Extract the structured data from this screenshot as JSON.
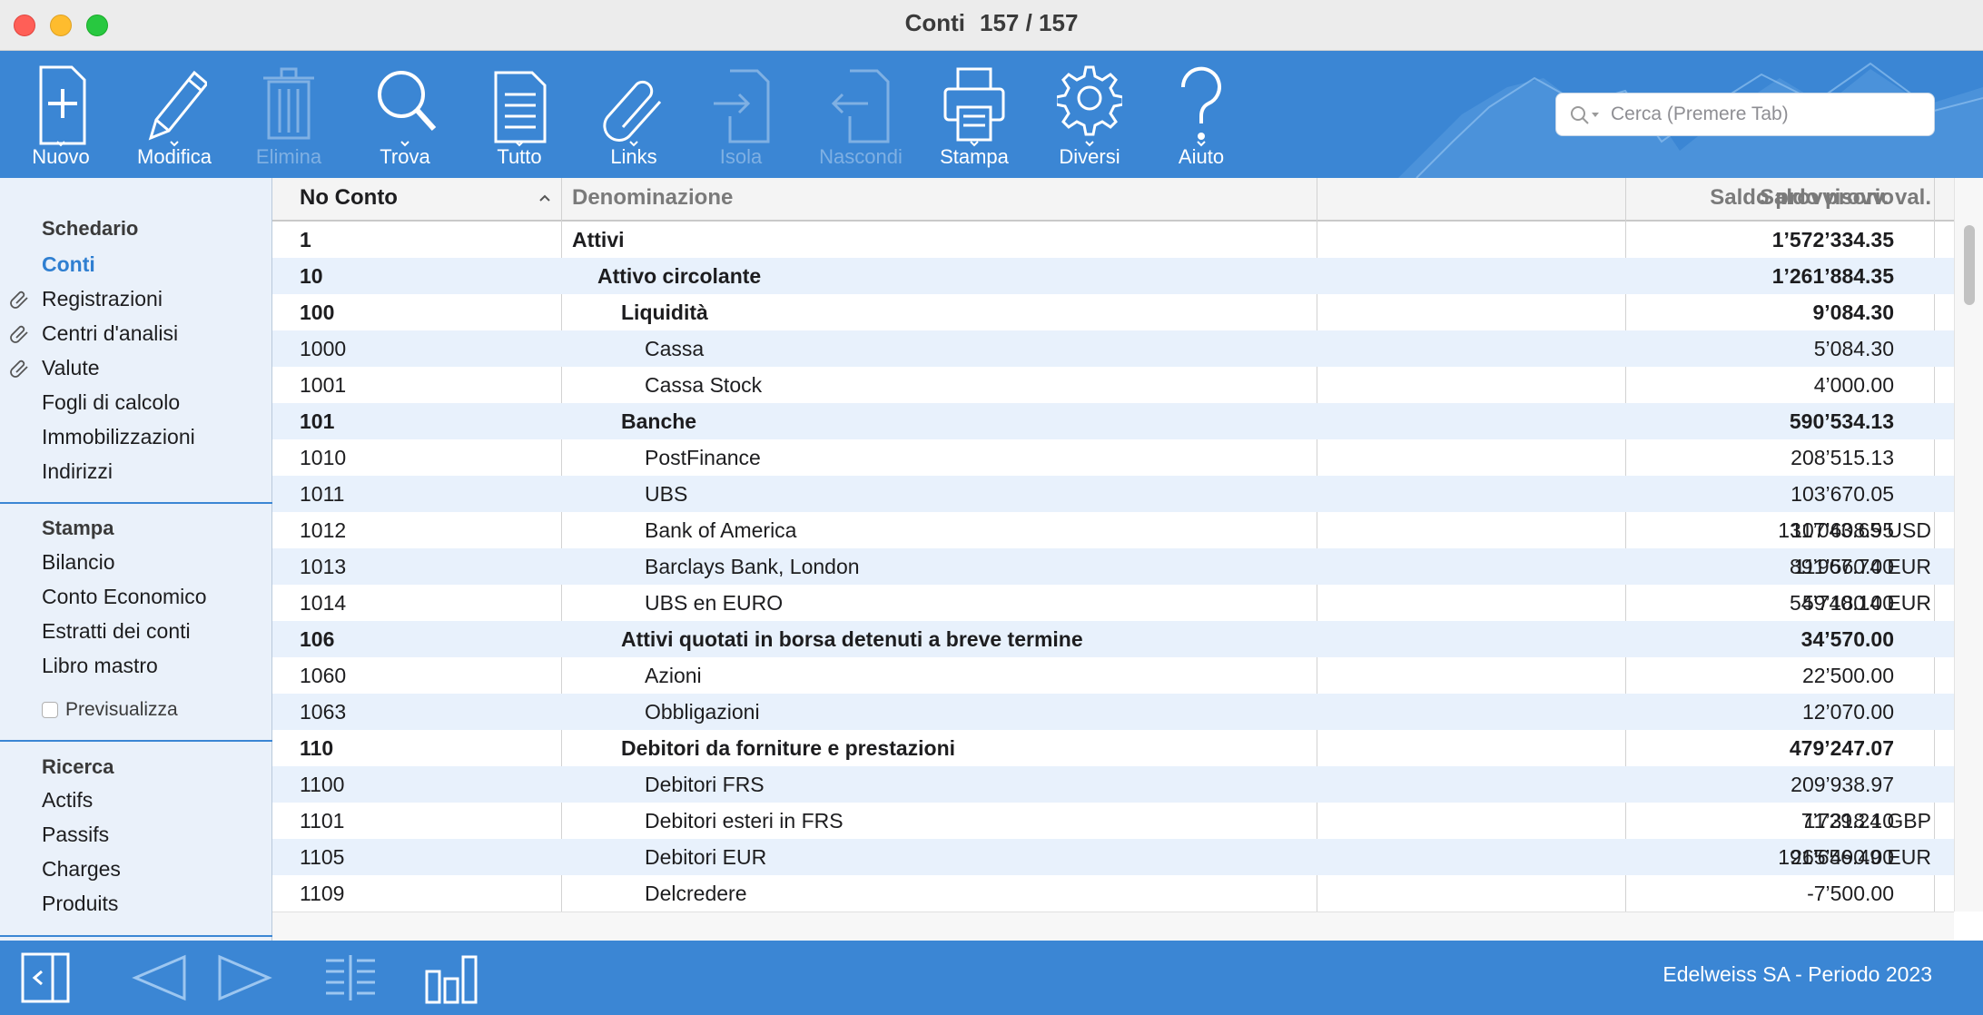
{
  "window": {
    "title": "Conti",
    "record_count": "157 / 157"
  },
  "toolbar": {
    "items": [
      {
        "label": "Nuovo",
        "icon": "new-document-icon",
        "enabled": true
      },
      {
        "label": "Modifica",
        "icon": "pencil-icon",
        "enabled": true
      },
      {
        "label": "Elimina",
        "icon": "trash-icon",
        "enabled": false
      },
      {
        "label": "Trova",
        "icon": "magnifier-icon",
        "enabled": true
      },
      {
        "label": "Tutto",
        "icon": "document-list-icon",
        "enabled": true
      },
      {
        "label": "Links",
        "icon": "paperclip-icon",
        "enabled": true
      },
      {
        "label": "Isola",
        "icon": "isolate-icon",
        "enabled": false
      },
      {
        "label": "Nascondi",
        "icon": "hide-icon",
        "enabled": false
      },
      {
        "label": "Stampa",
        "icon": "printer-icon",
        "enabled": true
      },
      {
        "label": "Diversi",
        "icon": "gear-icon",
        "enabled": true
      },
      {
        "label": "Aiuto",
        "icon": "question-icon",
        "enabled": true
      }
    ],
    "search_placeholder": "Cerca (Premere Tab)",
    "accent_color": "#3b86d4"
  },
  "sidebar": {
    "schedario": {
      "header": "Schedario",
      "items": [
        {
          "label": "Conti",
          "active": true,
          "linked": false
        },
        {
          "label": "Registrazioni",
          "active": false,
          "linked": true
        },
        {
          "label": "Centri d'analisi",
          "active": false,
          "linked": true
        },
        {
          "label": "Valute",
          "active": false,
          "linked": true
        },
        {
          "label": "Fogli di calcolo",
          "active": false,
          "linked": false
        },
        {
          "label": "Immobilizzazioni",
          "active": false,
          "linked": false
        },
        {
          "label": "Indirizzi",
          "active": false,
          "linked": false
        }
      ]
    },
    "stampa": {
      "header": "Stampa",
      "items": [
        "Bilancio",
        "Conto Economico",
        "Estratti dei conti",
        "Libro mastro"
      ],
      "preview_label": "Previsualizza",
      "preview_checked": false
    },
    "ricerca": {
      "header": "Ricerca",
      "items": [
        "Actifs",
        "Passifs",
        "Charges",
        "Produits"
      ]
    }
  },
  "table": {
    "columns": [
      "No Conto",
      "Denominazione",
      "Saldo provvisorio",
      "Saldo provv. val."
    ],
    "sort_column": "No Conto",
    "sort_direction": "ascending",
    "rows": [
      {
        "no": "1",
        "name": "Attivi",
        "level": 0,
        "bold": true,
        "saldo": "1’572’334.35",
        "saldo_val": ""
      },
      {
        "no": "10",
        "name": "Attivo circolante",
        "level": 1,
        "bold": true,
        "saldo": "1’261’884.35",
        "saldo_val": ""
      },
      {
        "no": "100",
        "name": "Liquidità",
        "level": 2,
        "bold": true,
        "saldo": "9’084.30",
        "saldo_val": ""
      },
      {
        "no": "1000",
        "name": "Cassa",
        "level": 3,
        "bold": false,
        "saldo": "5’084.30",
        "saldo_val": ""
      },
      {
        "no": "1001",
        "name": "Cassa Stock",
        "level": 3,
        "bold": false,
        "saldo": "4’000.00",
        "saldo_val": ""
      },
      {
        "no": "101",
        "name": "Banche",
        "level": 2,
        "bold": true,
        "saldo": "590’534.13",
        "saldo_val": ""
      },
      {
        "no": "1010",
        "name": "PostFinance",
        "level": 3,
        "bold": false,
        "saldo": "208’515.13",
        "saldo_val": ""
      },
      {
        "no": "1011",
        "name": "UBS",
        "level": 3,
        "bold": false,
        "saldo": "103’670.05",
        "saldo_val": ""
      },
      {
        "no": "1012",
        "name": "Bank of America",
        "level": 3,
        "bold": false,
        "saldo": "107’608.95",
        "saldo_val": "131’043.65 USD"
      },
      {
        "no": "1013",
        "name": "Barclays Bank, London",
        "level": 3,
        "bold": false,
        "saldo": "111’560.00",
        "saldo_val": "89’967.74 EUR"
      },
      {
        "no": "1014",
        "name": "UBS en EURO",
        "level": 3,
        "bold": false,
        "saldo": "59’180.00",
        "saldo_val": "54’740.14 EUR"
      },
      {
        "no": "106",
        "name": "Attivi quotati in borsa detenuti a breve termine",
        "level": 2,
        "bold": true,
        "saldo": "34’570.00",
        "saldo_val": ""
      },
      {
        "no": "1060",
        "name": "Azioni",
        "level": 3,
        "bold": false,
        "saldo": "22’500.00",
        "saldo_val": ""
      },
      {
        "no": "1063",
        "name": "Obbligazioni",
        "level": 3,
        "bold": false,
        "saldo": "12’070.00",
        "saldo_val": ""
      },
      {
        "no": "110",
        "name": "Debitori da forniture e prestazioni",
        "level": 2,
        "bold": true,
        "saldo": "479’247.07",
        "saldo_val": ""
      },
      {
        "no": "1100",
        "name": "Debitori FRS",
        "level": 3,
        "bold": false,
        "saldo": "209’938.97",
        "saldo_val": ""
      },
      {
        "no": "1101",
        "name": "Debitori esteri in FRS",
        "level": 3,
        "bold": false,
        "saldo": "11’318.10",
        "saldo_val": "7’729.24 GBP"
      },
      {
        "no": "1105",
        "name": "Debitori EUR",
        "level": 3,
        "bold": false,
        "saldo": "265’490.00",
        "saldo_val": "191’656.49 EUR"
      },
      {
        "no": "1109",
        "name": "Delcredere",
        "level": 3,
        "bold": false,
        "saldo": "-7’500.00",
        "saldo_val": ""
      }
    ]
  },
  "statusbar": {
    "text": "Edelweiss SA - Periodo 2023"
  }
}
